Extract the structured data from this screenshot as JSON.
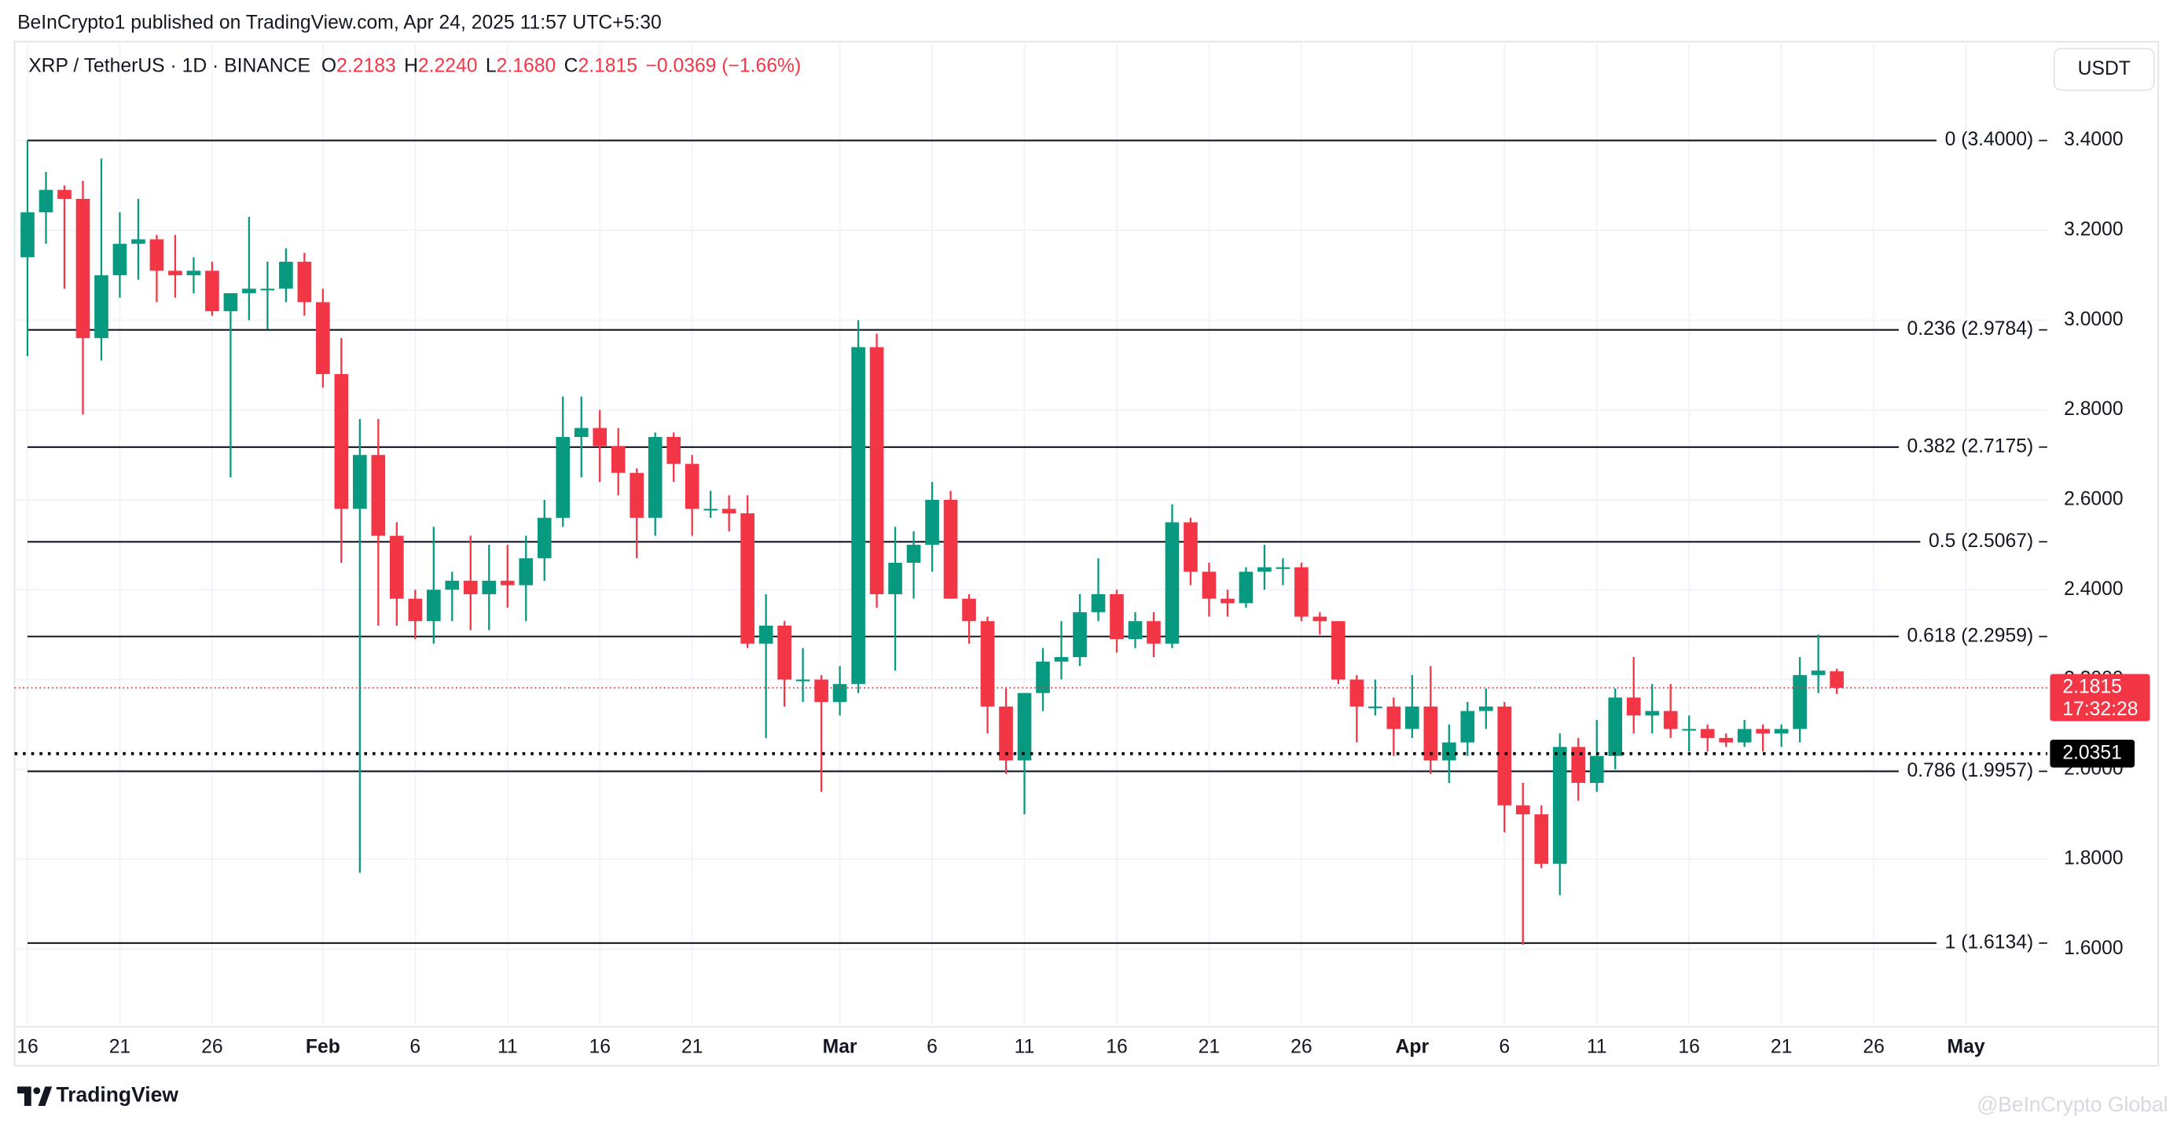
{
  "header": {
    "published": "BeInCrypto1 published on TradingView.com, Apr 24, 2025 11:57 UTC+5:30",
    "symbol": "XRP / TetherUS · 1D · BINANCE",
    "open_label": "O",
    "open": "2.2183",
    "high_label": "H",
    "high": "2.2240",
    "low_label": "L",
    "low": "2.1680",
    "close_label": "C",
    "close": "2.1815",
    "change": "−0.0369 (−1.66%)",
    "currency": "USDT"
  },
  "chart_data": {
    "type": "candlestick",
    "open": [
      3.14,
      3.24,
      3.29,
      3.27,
      2.96,
      3.1,
      3.17,
      3.18,
      3.11,
      3.1,
      3.11,
      3.02,
      3.06,
      3.07,
      3.07,
      3.13,
      3.04,
      2.88,
      2.58,
      2.7,
      2.52,
      2.38,
      2.33,
      2.4,
      2.42,
      2.39,
      2.42,
      2.41,
      2.47,
      2.56,
      2.74,
      2.76,
      2.72,
      2.66,
      2.56,
      2.74,
      2.68,
      2.58,
      2.58,
      2.57,
      2.28,
      2.32,
      2.2,
      2.2,
      2.15,
      2.19,
      2.94,
      2.39,
      2.46,
      2.5,
      2.6,
      2.38,
      2.33,
      2.14,
      2.02,
      2.17,
      2.24,
      2.25,
      2.35,
      2.39,
      2.29,
      2.33,
      2.28,
      2.55,
      2.44,
      2.38,
      2.37,
      2.44,
      2.45,
      2.45,
      2.34,
      2.33,
      2.2,
      2.14,
      2.14,
      2.09,
      2.14,
      2.02,
      2.06,
      2.13,
      2.14,
      1.92,
      1.9,
      1.79,
      2.05,
      1.97,
      2.03,
      2.16,
      2.12,
      2.13,
      2.09,
      2.09,
      2.07,
      2.06,
      2.09,
      2.08,
      2.09,
      2.21,
      2.2183
    ],
    "high": [
      3.4,
      3.33,
      3.3,
      3.31,
      3.36,
      3.24,
      3.27,
      3.19,
      3.19,
      3.14,
      3.13,
      3.06,
      3.23,
      3.13,
      3.16,
      3.15,
      3.07,
      2.96,
      2.78,
      2.78,
      2.55,
      2.4,
      2.54,
      2.44,
      2.52,
      2.5,
      2.5,
      2.52,
      2.6,
      2.83,
      2.83,
      2.8,
      2.76,
      2.67,
      2.75,
      2.75,
      2.7,
      2.62,
      2.61,
      2.61,
      2.39,
      2.33,
      2.27,
      2.21,
      2.23,
      3.0,
      2.97,
      2.54,
      2.53,
      2.64,
      2.62,
      2.39,
      2.34,
      2.18,
      2.17,
      2.27,
      2.33,
      2.39,
      2.47,
      2.4,
      2.35,
      2.35,
      2.59,
      2.56,
      2.46,
      2.4,
      2.45,
      2.5,
      2.47,
      2.46,
      2.35,
      2.33,
      2.21,
      2.2,
      2.16,
      2.21,
      2.23,
      2.1,
      2.15,
      2.18,
      2.15,
      1.97,
      1.92,
      2.08,
      2.07,
      2.11,
      2.18,
      2.25,
      2.19,
      2.19,
      2.12,
      2.1,
      2.08,
      2.11,
      2.1,
      2.1,
      2.25,
      2.3,
      2.224
    ],
    "low": [
      2.92,
      3.17,
      3.07,
      2.79,
      2.91,
      3.05,
      3.09,
      3.04,
      3.05,
      3.06,
      3.01,
      2.65,
      3.0,
      2.98,
      3.04,
      3.01,
      2.85,
      2.46,
      1.77,
      2.32,
      2.32,
      2.29,
      2.28,
      2.33,
      2.31,
      2.31,
      2.36,
      2.33,
      2.42,
      2.54,
      2.65,
      2.64,
      2.61,
      2.47,
      2.52,
      2.64,
      2.52,
      2.56,
      2.53,
      2.27,
      2.07,
      2.14,
      2.15,
      1.95,
      2.12,
      2.17,
      2.36,
      2.22,
      2.38,
      2.44,
      2.38,
      2.28,
      2.08,
      1.99,
      1.9,
      2.13,
      2.2,
      2.23,
      2.33,
      2.26,
      2.27,
      2.25,
      2.27,
      2.41,
      2.34,
      2.34,
      2.36,
      2.4,
      2.41,
      2.33,
      2.3,
      2.19,
      2.06,
      2.12,
      2.03,
      2.07,
      1.99,
      1.97,
      2.03,
      2.09,
      1.86,
      1.61,
      1.78,
      1.72,
      1.93,
      1.95,
      2.0,
      2.08,
      2.08,
      2.07,
      2.04,
      2.04,
      2.05,
      2.05,
      2.04,
      2.05,
      2.06,
      2.17,
      2.168
    ],
    "close": [
      3.24,
      3.29,
      3.27,
      2.96,
      3.1,
      3.17,
      3.18,
      3.11,
      3.1,
      3.11,
      3.02,
      3.06,
      3.07,
      3.07,
      3.13,
      3.04,
      2.88,
      2.58,
      2.7,
      2.52,
      2.38,
      2.33,
      2.4,
      2.42,
      2.39,
      2.42,
      2.41,
      2.47,
      2.56,
      2.74,
      2.76,
      2.72,
      2.66,
      2.56,
      2.74,
      2.68,
      2.58,
      2.58,
      2.57,
      2.28,
      2.32,
      2.2,
      2.2,
      2.15,
      2.19,
      2.94,
      2.39,
      2.46,
      2.5,
      2.6,
      2.38,
      2.33,
      2.14,
      2.02,
      2.17,
      2.24,
      2.25,
      2.35,
      2.39,
      2.29,
      2.33,
      2.28,
      2.55,
      2.44,
      2.38,
      2.37,
      2.44,
      2.45,
      2.45,
      2.34,
      2.33,
      2.2,
      2.14,
      2.14,
      2.09,
      2.14,
      2.02,
      2.06,
      2.13,
      2.14,
      1.92,
      1.9,
      1.79,
      2.05,
      1.97,
      2.03,
      2.16,
      2.12,
      2.13,
      2.09,
      2.09,
      2.07,
      2.06,
      2.09,
      2.08,
      2.09,
      2.21,
      2.22,
      2.1815
    ],
    "up_color": "#089981",
    "down_color": "#f23645",
    "xlim": [
      -0.7,
      109.4
    ],
    "xticks": [
      {
        "value": 0,
        "label": "16"
      },
      {
        "value": 5,
        "label": "21"
      },
      {
        "value": 10,
        "label": "26"
      },
      {
        "value": 16,
        "label": "Feb"
      },
      {
        "value": 21,
        "label": "6"
      },
      {
        "value": 26,
        "label": "11"
      },
      {
        "value": 31,
        "label": "16"
      },
      {
        "value": 36,
        "label": "21"
      },
      {
        "value": 44,
        "label": "Mar"
      },
      {
        "value": 49,
        "label": "6"
      },
      {
        "value": 54,
        "label": "11"
      },
      {
        "value": 59,
        "label": "16"
      },
      {
        "value": 64,
        "label": "21"
      },
      {
        "value": 69,
        "label": "26"
      },
      {
        "value": 75,
        "label": "Apr"
      },
      {
        "value": 80,
        "label": "6"
      },
      {
        "value": 85,
        "label": "11"
      },
      {
        "value": 90,
        "label": "16"
      },
      {
        "value": 95,
        "label": "21"
      },
      {
        "value": 100,
        "label": "26"
      },
      {
        "value": 105,
        "label": "May"
      }
    ],
    "ylim": [
      1.43,
      3.62
    ],
    "yticks": [
      {
        "value": 1.6,
        "label": "1.6000"
      },
      {
        "value": 1.8,
        "label": "1.8000"
      },
      {
        "value": 2.0,
        "label": "2.0000"
      },
      {
        "value": 2.2,
        "label": "2.2000"
      },
      {
        "value": 2.4,
        "label": "2.4000"
      },
      {
        "value": 2.6,
        "label": "2.6000"
      },
      {
        "value": 2.8,
        "label": "2.8000"
      },
      {
        "value": 3.0,
        "label": "3.0000"
      },
      {
        "value": 3.2,
        "label": "3.2000"
      },
      {
        "value": 3.4,
        "label": "3.4000"
      }
    ],
    "grid": true,
    "fib_levels": [
      {
        "value": 3.4,
        "label": "0 (3.4000)"
      },
      {
        "value": 2.9784,
        "label": "0.236 (2.9784)"
      },
      {
        "value": 2.7175,
        "label": "0.382 (2.7175)"
      },
      {
        "value": 2.5067,
        "label": "0.5 (2.5067)"
      },
      {
        "value": 2.2959,
        "label": "0.618 (2.2959)"
      },
      {
        "value": 1.9957,
        "label": "0.786 (1.9957)"
      },
      {
        "value": 1.6134,
        "label": "1 (1.6134)"
      }
    ],
    "last_price": 2.1815,
    "countdown": "17:32:28",
    "horizontal_line": 2.0351
  },
  "footer": {
    "brand": "TradingView",
    "watermark": "@BeInCrypto Global"
  }
}
